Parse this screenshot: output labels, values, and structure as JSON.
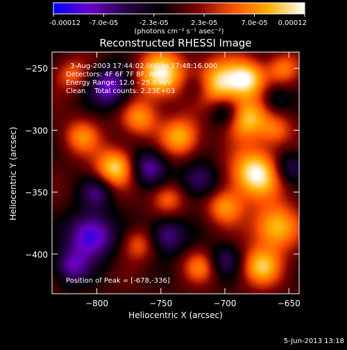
{
  "chart_data": {
    "type": "heatmap",
    "title": "Reconstructed RHESSI Image",
    "xlabel": "Heliocentric X (arcsec)",
    "ylabel": "Heliocentric Y (arcsec)",
    "xlim": [
      -835,
      -642
    ],
    "ylim": [
      -432,
      -237
    ],
    "xticks": [
      -800,
      -750,
      -700,
      -650
    ],
    "yticks": [
      -250,
      -300,
      -350,
      -400
    ],
    "colorbar": {
      "range": [
        -0.00012,
        0.00012
      ],
      "tick_labels": [
        "-0.00012",
        "-7.0e-05",
        "-2.3e-05",
        "2.3e-05",
        "7.0e-05",
        "0.00012"
      ],
      "unit_label": "(photons cm⁻² s⁻¹ asec⁻²)",
      "colormap": [
        "#0000ff",
        "#6a00c8",
        "#2a004a",
        "#000000",
        "#7a0000",
        "#ff5000",
        "#ffb000",
        "#ffffff"
      ]
    },
    "annotations": {
      "time": "3-Aug-2003 17:44:02.000 to 17:48:16.000",
      "detectors": "Detectors: 4F 6F 7F 8F, Att 0",
      "energy": "Energy Range: 12.0 - 25.0 keV",
      "clean": "Clean    Total counts: 2.23E+03",
      "peak": "Position of Peak = [-678,-336]"
    },
    "peak": [
      -678,
      -336
    ],
    "blobs": [
      {
        "x": -676,
        "y": -335,
        "v": 1.0,
        "r": 14
      },
      {
        "x": -683,
        "y": -290,
        "v": 0.8,
        "r": 12
      },
      {
        "x": -705,
        "y": -262,
        "v": 0.9,
        "r": 14
      },
      {
        "x": -682,
        "y": -258,
        "v": 0.75,
        "r": 10
      },
      {
        "x": -750,
        "y": -255,
        "v": 0.95,
        "r": 13
      },
      {
        "x": -735,
        "y": -305,
        "v": 0.7,
        "r": 11
      },
      {
        "x": -767,
        "y": -290,
        "v": 0.6,
        "r": 10
      },
      {
        "x": -786,
        "y": -330,
        "v": 0.85,
        "r": 11
      },
      {
        "x": -812,
        "y": -305,
        "v": 0.55,
        "r": 10
      },
      {
        "x": -820,
        "y": -255,
        "v": 0.45,
        "r": 9
      },
      {
        "x": -660,
        "y": -378,
        "v": 0.8,
        "r": 13
      },
      {
        "x": -672,
        "y": -410,
        "v": 0.75,
        "r": 11
      },
      {
        "x": -700,
        "y": -362,
        "v": 0.6,
        "r": 10
      },
      {
        "x": -720,
        "y": -410,
        "v": 0.5,
        "r": 9
      },
      {
        "x": -660,
        "y": -300,
        "v": 0.45,
        "r": 9
      },
      {
        "x": -768,
        "y": -392,
        "v": 0.45,
        "r": 9
      },
      {
        "x": -745,
        "y": -355,
        "v": 0.5,
        "r": 9
      },
      {
        "x": -655,
        "y": -250,
        "v": 0.55,
        "r": 9
      },
      {
        "x": -805,
        "y": -385,
        "v": -0.9,
        "r": 13
      },
      {
        "x": -820,
        "y": -410,
        "v": -0.6,
        "r": 10
      },
      {
        "x": -790,
        "y": -265,
        "v": -0.75,
        "r": 11
      },
      {
        "x": -760,
        "y": -330,
        "v": -0.65,
        "r": 10
      },
      {
        "x": -720,
        "y": -340,
        "v": -0.55,
        "r": 10
      },
      {
        "x": -745,
        "y": -385,
        "v": -0.6,
        "r": 10
      },
      {
        "x": -700,
        "y": -285,
        "v": -0.55,
        "r": 9
      },
      {
        "x": -650,
        "y": -330,
        "v": -0.5,
        "r": 9
      },
      {
        "x": -700,
        "y": -405,
        "v": -0.45,
        "r": 9
      },
      {
        "x": -722,
        "y": -265,
        "v": -0.4,
        "r": 9
      },
      {
        "x": -660,
        "y": -275,
        "v": -0.35,
        "r": 8
      },
      {
        "x": -800,
        "y": -350,
        "v": -0.5,
        "r": 9
      }
    ]
  },
  "footer": {
    "date": "5-Jun-2013 13:18"
  }
}
